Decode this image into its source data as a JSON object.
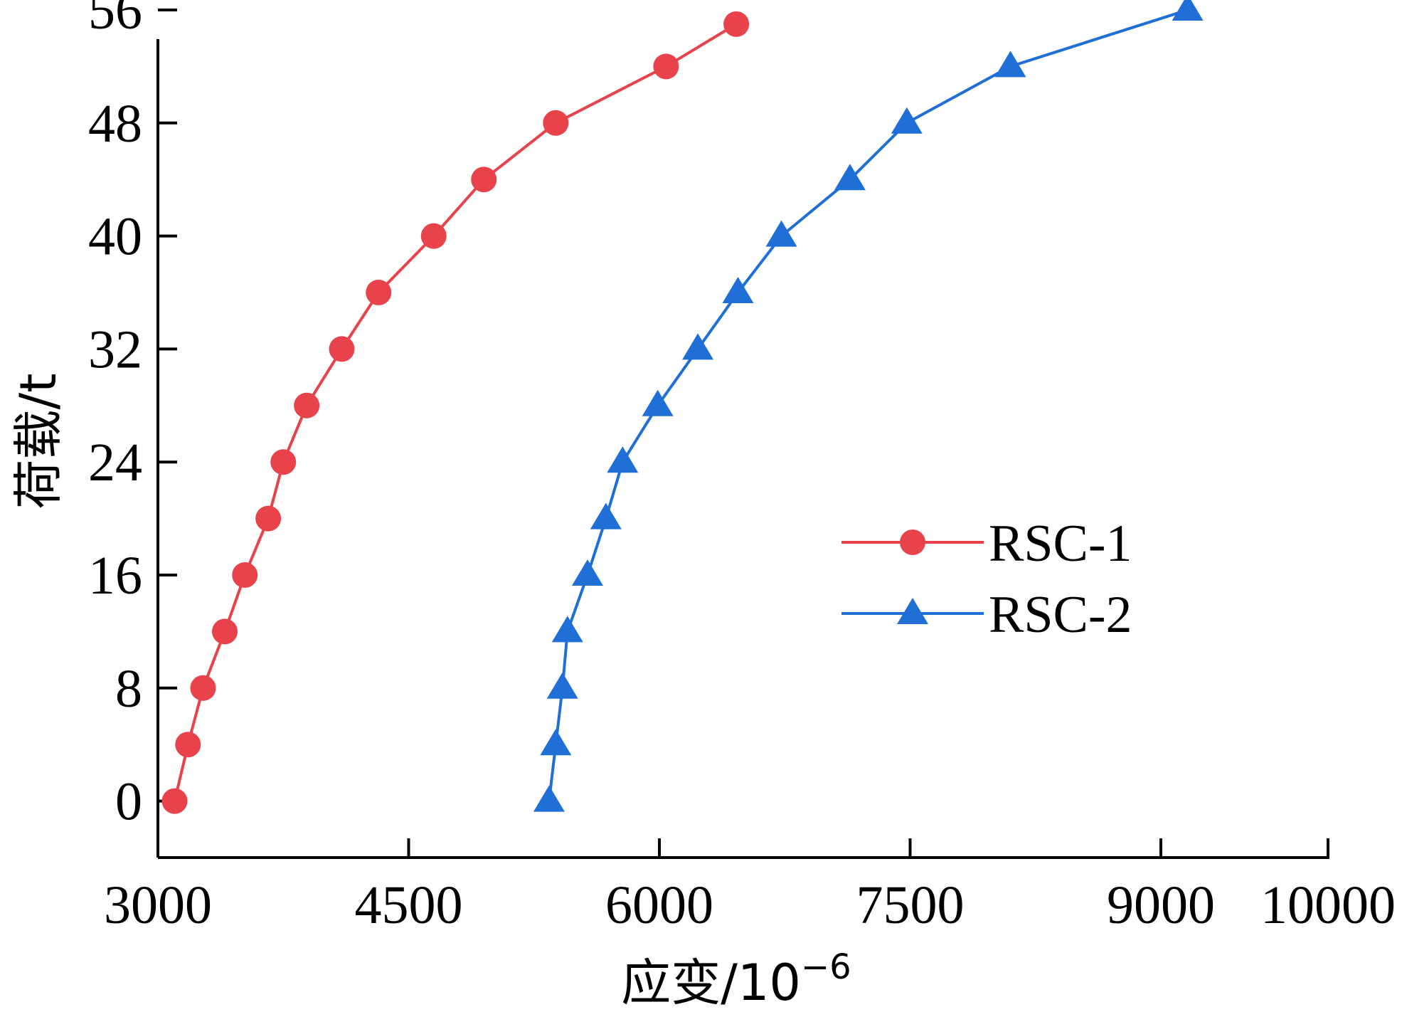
{
  "chart_data": {
    "type": "line",
    "title": "",
    "xlabel_main": "应变/10",
    "xlabel_exp": "−6",
    "ylabel": "荷载/t",
    "xlim": [
      3000,
      10000
    ],
    "ylim": [
      -4,
      56
    ],
    "x_ticks": [
      {
        "value": 3000,
        "label": "3000"
      },
      {
        "value": 4500,
        "label": "4500"
      },
      {
        "value": 6000,
        "label": "6000"
      },
      {
        "value": 7500,
        "label": "7500"
      },
      {
        "value": 9000,
        "label": "9000"
      },
      {
        "value": 10000,
        "label": "10000"
      }
    ],
    "y_ticks": [
      {
        "value": 0,
        "label": "0"
      },
      {
        "value": 8,
        "label": "8"
      },
      {
        "value": 16,
        "label": "16"
      },
      {
        "value": 24,
        "label": "24"
      },
      {
        "value": 32,
        "label": "32"
      },
      {
        "value": 40,
        "label": "40"
      },
      {
        "value": 48,
        "label": "48"
      },
      {
        "value": 56,
        "label": "56"
      }
    ],
    "grid": false,
    "legend_position": "center-right",
    "series": [
      {
        "name": "RSC-1",
        "color": "#e8424a",
        "marker": "circle",
        "points": [
          [
            3100,
            0
          ],
          [
            3180,
            4
          ],
          [
            3270,
            8
          ],
          [
            3400,
            12
          ],
          [
            3520,
            16
          ],
          [
            3660,
            20
          ],
          [
            3750,
            24
          ],
          [
            3890,
            28
          ],
          [
            4100,
            32
          ],
          [
            4320,
            36
          ],
          [
            4650,
            40
          ],
          [
            4950,
            44
          ],
          [
            5380,
            48
          ],
          [
            6040,
            52
          ],
          [
            6460,
            55
          ]
        ]
      },
      {
        "name": "RSC-2",
        "color": "#1f6fd6",
        "marker": "triangle",
        "points": [
          [
            5340,
            0
          ],
          [
            5380,
            4
          ],
          [
            5420,
            8
          ],
          [
            5450,
            12
          ],
          [
            5570,
            16
          ],
          [
            5680,
            20
          ],
          [
            5780,
            24
          ],
          [
            5990,
            28
          ],
          [
            6230,
            32
          ],
          [
            6470,
            36
          ],
          [
            6730,
            40
          ],
          [
            7140,
            44
          ],
          [
            7480,
            48
          ],
          [
            8100,
            52
          ],
          [
            9160,
            56
          ]
        ]
      }
    ]
  }
}
